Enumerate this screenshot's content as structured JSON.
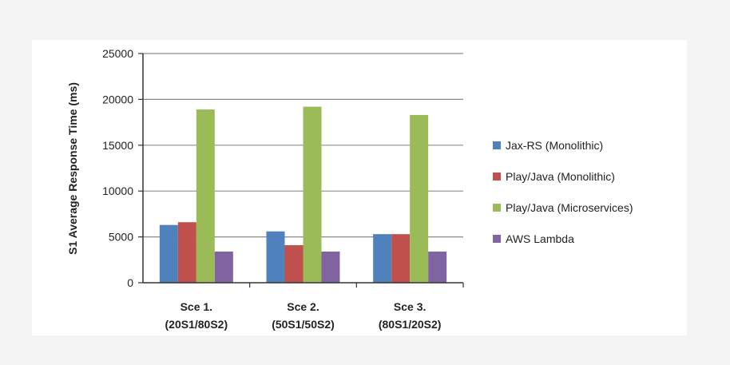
{
  "chart_data": {
    "type": "bar",
    "ylabel": "S1 Average Response Time (ms)",
    "xlabel": "",
    "ylim": [
      0,
      25000
    ],
    "yticks": [
      0,
      5000,
      10000,
      15000,
      20000,
      25000
    ],
    "grid": true,
    "legend_position": "right",
    "categories": [
      [
        "Sce 1.",
        "(20S1/80S2)"
      ],
      [
        "Sce 2.",
        "(50S1/50S2)"
      ],
      [
        "Sce 3.",
        "(80S1/20S2)"
      ]
    ],
    "series": [
      {
        "name": "Jax-RS (Monolithic)",
        "color": "#4f81bd",
        "values": [
          6300,
          5600,
          5300
        ]
      },
      {
        "name": "Play/Java (Monolithic)",
        "color": "#c0504d",
        "values": [
          6600,
          4100,
          5300
        ]
      },
      {
        "name": "Play/Java (Microservices)",
        "color": "#9bbb59",
        "values": [
          18900,
          19200,
          18300
        ]
      },
      {
        "name": "AWS Lambda",
        "color": "#8064a2",
        "values": [
          3400,
          3400,
          3400
        ]
      }
    ]
  }
}
